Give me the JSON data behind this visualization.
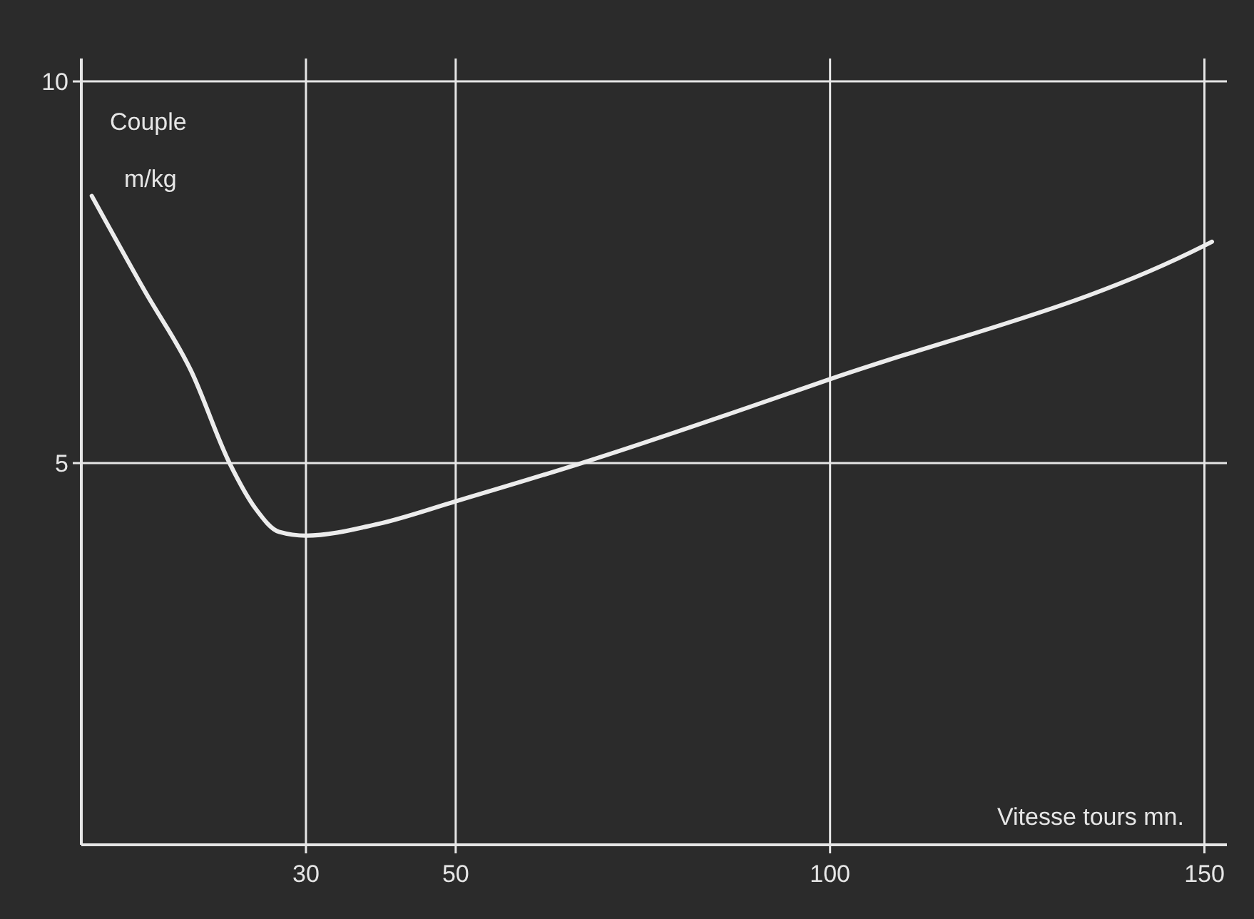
{
  "chart_data": {
    "type": "line",
    "xlabel": "Vitesse tours mn.",
    "ylabel": "Couple\nm/kg",
    "xlim": [
      0,
      153
    ],
    "ylim": [
      0,
      10.3
    ],
    "xticks": [
      30,
      50,
      100,
      150
    ],
    "yticks": [
      5,
      10
    ],
    "grid": true,
    "marker": "none",
    "line_style": "solid",
    "series": [
      {
        "color": "#ececec",
        "x": [
          1.4,
          8.5,
          14.7,
          19.8,
          23.3,
          26.4,
          30,
          39.5,
          50,
          66.8,
          100,
          150,
          151
        ],
        "values": [
          8.5,
          7.25,
          6.2,
          5.0,
          4.4,
          4.1,
          4.05,
          4.2,
          4.5,
          5.0,
          6.1,
          7.85,
          7.9
        ]
      }
    ]
  }
}
